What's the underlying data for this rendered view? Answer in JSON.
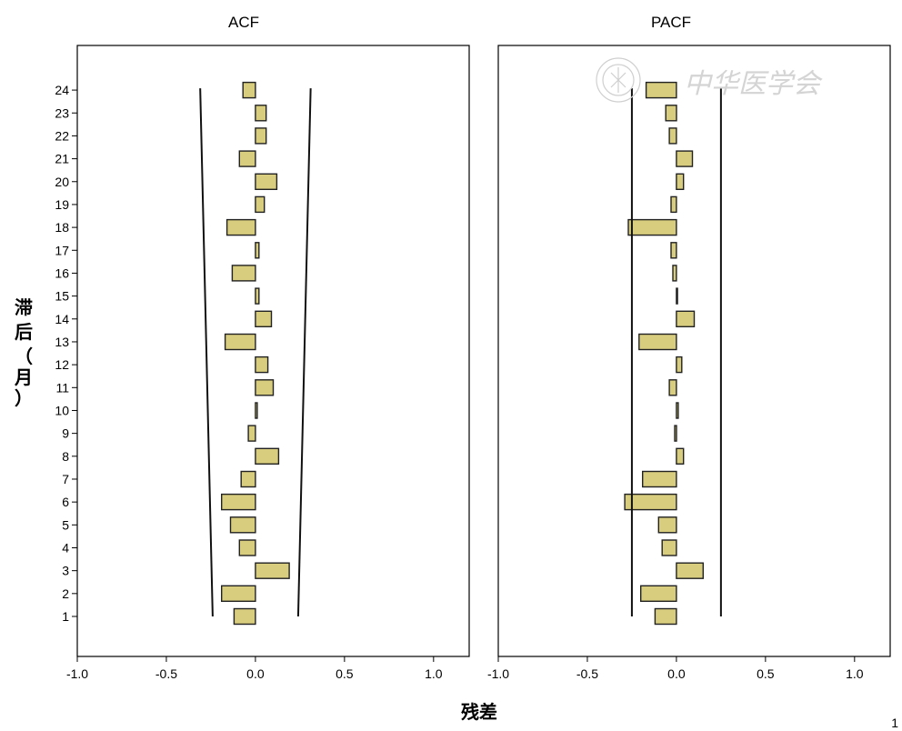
{
  "colors": {
    "bar_fill": "#d8cc7e",
    "bar_stroke": "#222222",
    "confidence_line": "#111111",
    "frame": "#000000",
    "watermark": "#d4d4d4"
  },
  "watermark": {
    "text": "中华医学会",
    "icon": "seal-logo-icon"
  },
  "yaxis_label": [
    "滞",
    "后",
    "（",
    "月",
    "）"
  ],
  "xaxis_label": "残差",
  "page_mark": "1",
  "chart_data": [
    {
      "type": "bar",
      "orientation": "horizontal",
      "title": "ACF",
      "xlim": [
        -1.0,
        1.2
      ],
      "xticks": [
        -1.0,
        -0.5,
        0.0,
        0.5,
        1.0
      ],
      "xtick_labels": [
        "-1.0",
        "-0.5",
        "0.0",
        "0.5",
        "1.0"
      ],
      "categories": [
        "1",
        "2",
        "3",
        "4",
        "5",
        "6",
        "7",
        "8",
        "9",
        "10",
        "11",
        "12",
        "13",
        "14",
        "15",
        "16",
        "17",
        "18",
        "19",
        "20",
        "21",
        "22",
        "23",
        "24"
      ],
      "values": [
        -0.12,
        -0.19,
        0.19,
        -0.09,
        -0.14,
        -0.19,
        -0.08,
        0.13,
        -0.04,
        0.01,
        0.1,
        0.07,
        -0.17,
        0.09,
        0.02,
        -0.13,
        0.02,
        -0.16,
        0.05,
        0.12,
        -0.09,
        0.06,
        0.06,
        -0.07
      ],
      "confidence_band": {
        "lags": [
          1,
          24
        ],
        "upper": [
          0.24,
          0.31
        ],
        "lower": [
          -0.24,
          -0.31
        ]
      }
    },
    {
      "type": "bar",
      "orientation": "horizontal",
      "title": "PACF",
      "xlim": [
        -1.0,
        1.2
      ],
      "xticks": [
        -1.0,
        -0.5,
        0.0,
        0.5,
        1.0
      ],
      "xtick_labels": [
        "-1.0",
        "-0.5",
        "0.0",
        "0.5",
        "1.0"
      ],
      "categories": [
        "1",
        "2",
        "3",
        "4",
        "5",
        "6",
        "7",
        "8",
        "9",
        "10",
        "11",
        "12",
        "13",
        "14",
        "15",
        "16",
        "17",
        "18",
        "19",
        "20",
        "21",
        "22",
        "23",
        "24"
      ],
      "values": [
        -0.12,
        -0.2,
        0.15,
        -0.08,
        -0.1,
        -0.29,
        -0.19,
        0.04,
        -0.01,
        0.01,
        -0.04,
        0.03,
        -0.21,
        0.1,
        0.0,
        -0.02,
        -0.03,
        -0.27,
        -0.03,
        0.04,
        0.09,
        -0.04,
        -0.06,
        -0.17
      ],
      "confidence_band": {
        "lags": [
          1,
          24
        ],
        "upper": [
          0.25,
          0.25
        ],
        "lower": [
          -0.25,
          -0.25
        ]
      }
    }
  ]
}
